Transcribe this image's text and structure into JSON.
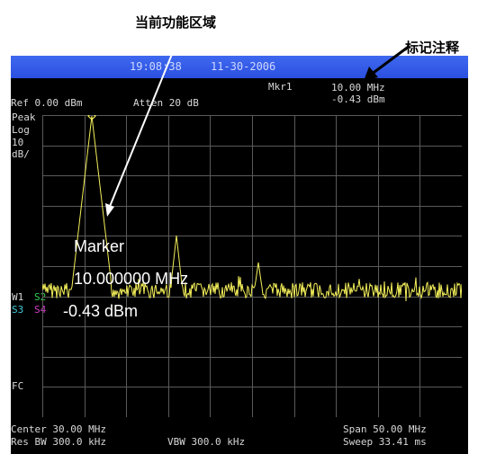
{
  "callouts": {
    "active_function_area": "当前功能区域",
    "marker_annotation": "标记注释"
  },
  "header": {
    "time": "19:08:38",
    "date": "11-30-2006"
  },
  "marker_readout": {
    "label": "Mkr1",
    "freq": "10.00 MHz",
    "amp": "-0.43 dBm"
  },
  "settings": {
    "ref": "Ref 0.00 dBm",
    "atten": "Atten 20 dB"
  },
  "left_panel": {
    "peak": "Peak",
    "log": "Log",
    "scale_value": "10",
    "scale_unit": "dB/",
    "w1": "W1",
    "s2": "S2",
    "s3": "S3",
    "s4": "S4",
    "fc": "FC"
  },
  "active_function": {
    "title": "Marker",
    "freq": "10.000000 MHz",
    "amp": "-0.43 dBm"
  },
  "footer": {
    "center": "Center 30.00 MHz",
    "span": "Span 50.00 MHz",
    "rbw": "Res BW 300.0 kHz",
    "vbw": "VBW 300.0 kHz",
    "sweep": "Sweep 33.41 ms"
  },
  "colors": {
    "trace": "#f4f05a",
    "s2": "#31d04d",
    "s3": "#41c8d8",
    "s4": "#d040c8",
    "grid": "#5a5a5a",
    "titlebar": "#3558e8"
  }
}
